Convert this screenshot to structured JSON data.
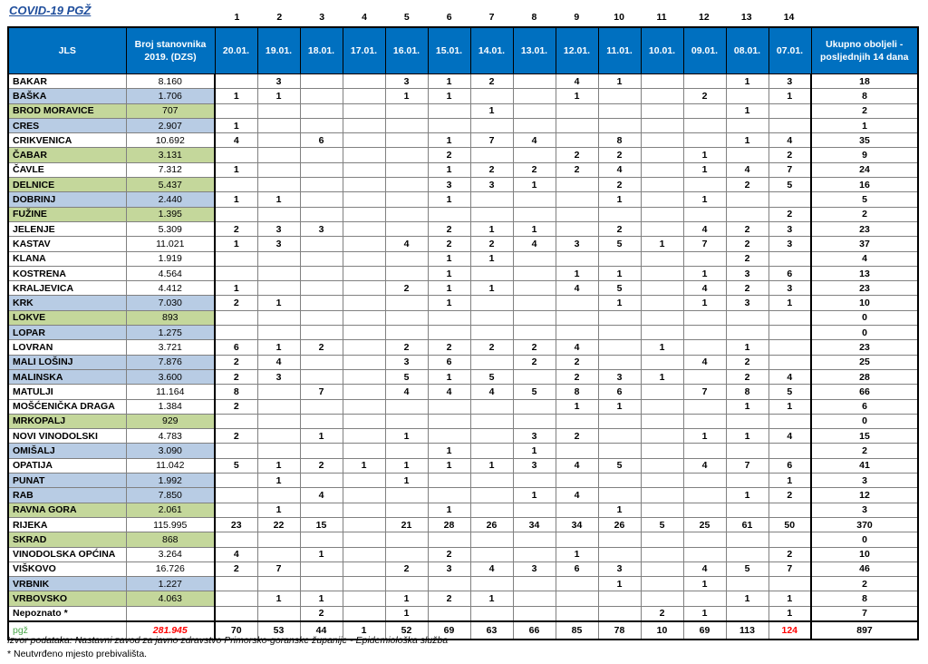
{
  "title": "COVID-19  PGŽ",
  "column_numbers": [
    "1",
    "2",
    "3",
    "4",
    "5",
    "6",
    "7",
    "8",
    "9",
    "10",
    "11",
    "12",
    "13",
    "14"
  ],
  "headers": {
    "jls": "JLS",
    "population": "Broj stanovnika 2019. (DZS)",
    "dates": [
      "20.01.",
      "19.01.",
      "18.01.",
      "17.01.",
      "16.01.",
      "15.01.",
      "14.01.",
      "13.01.",
      "12.01.",
      "11.01.",
      "10.01.",
      "09.01.",
      "08.01.",
      "07.01."
    ],
    "total": "Ukupno oboljeli - posljednjih 14 dana"
  },
  "rows": [
    {
      "name": "BAKAR",
      "pop": "8.160",
      "style": "white",
      "days": [
        "",
        "3",
        "",
        "",
        "3",
        "1",
        "2",
        "",
        "4",
        "1",
        "",
        "",
        "1",
        "3"
      ],
      "total": "18"
    },
    {
      "name": "BAŠKA",
      "pop": "1.706",
      "style": "blue",
      "days": [
        "1",
        "1",
        "",
        "",
        "1",
        "1",
        "",
        "",
        "1",
        "",
        "",
        "2",
        "",
        "1"
      ],
      "total": "8"
    },
    {
      "name": "BROD MORAVICE",
      "pop": "707",
      "style": "green",
      "days": [
        "",
        "",
        "",
        "",
        "",
        "",
        "1",
        "",
        "",
        "",
        "",
        "",
        "1",
        ""
      ],
      "total": "2"
    },
    {
      "name": "CRES",
      "pop": "2.907",
      "style": "blue",
      "days": [
        "1",
        "",
        "",
        "",
        "",
        "",
        "",
        "",
        "",
        "",
        "",
        "",
        "",
        ""
      ],
      "total": "1"
    },
    {
      "name": "CRIKVENICA",
      "pop": "10.692",
      "style": "white",
      "days": [
        "4",
        "",
        "6",
        "",
        "",
        "1",
        "7",
        "4",
        "",
        "8",
        "",
        "",
        "1",
        "4"
      ],
      "total": "35"
    },
    {
      "name": "ČABAR",
      "pop": "3.131",
      "style": "green",
      "days": [
        "",
        "",
        "",
        "",
        "",
        "2",
        "",
        "",
        "2",
        "2",
        "",
        "1",
        "",
        "2"
      ],
      "total": "9"
    },
    {
      "name": "ČAVLE",
      "pop": "7.312",
      "style": "white",
      "days": [
        "1",
        "",
        "",
        "",
        "",
        "1",
        "2",
        "2",
        "2",
        "4",
        "",
        "1",
        "4",
        "7"
      ],
      "total": "24"
    },
    {
      "name": "DELNICE",
      "pop": "5.437",
      "style": "green",
      "days": [
        "",
        "",
        "",
        "",
        "",
        "3",
        "3",
        "1",
        "",
        "2",
        "",
        "",
        "2",
        "5"
      ],
      "total": "16"
    },
    {
      "name": "DOBRINJ",
      "pop": "2.440",
      "style": "blue",
      "days": [
        "1",
        "1",
        "",
        "",
        "",
        "1",
        "",
        "",
        "",
        "1",
        "",
        "1",
        "",
        ""
      ],
      "total": "5"
    },
    {
      "name": "FUŽINE",
      "pop": "1.395",
      "style": "green",
      "days": [
        "",
        "",
        "",
        "",
        "",
        "",
        "",
        "",
        "",
        "",
        "",
        "",
        "",
        "2"
      ],
      "total": "2"
    },
    {
      "name": "JELENJE",
      "pop": "5.309",
      "style": "white",
      "days": [
        "2",
        "3",
        "3",
        "",
        "",
        "2",
        "1",
        "1",
        "",
        "2",
        "",
        "4",
        "2",
        "3"
      ],
      "total": "23"
    },
    {
      "name": "KASTAV",
      "pop": "11.021",
      "style": "white",
      "days": [
        "1",
        "3",
        "",
        "",
        "4",
        "2",
        "2",
        "4",
        "3",
        "5",
        "1",
        "7",
        "2",
        "3"
      ],
      "total": "37"
    },
    {
      "name": "KLANA",
      "pop": "1.919",
      "style": "white",
      "days": [
        "",
        "",
        "",
        "",
        "",
        "1",
        "1",
        "",
        "",
        "",
        "",
        "",
        "2",
        ""
      ],
      "total": "4"
    },
    {
      "name": "KOSTRENA",
      "pop": "4.564",
      "style": "white",
      "days": [
        "",
        "",
        "",
        "",
        "",
        "1",
        "",
        "",
        "1",
        "1",
        "",
        "1",
        "3",
        "6"
      ],
      "total": "13"
    },
    {
      "name": "KRALJEVICA",
      "pop": "4.412",
      "style": "white",
      "days": [
        "1",
        "",
        "",
        "",
        "2",
        "1",
        "1",
        "",
        "4",
        "5",
        "",
        "4",
        "2",
        "3"
      ],
      "total": "23"
    },
    {
      "name": "KRK",
      "pop": "7.030",
      "style": "blue",
      "days": [
        "2",
        "1",
        "",
        "",
        "",
        "1",
        "",
        "",
        "",
        "1",
        "",
        "1",
        "3",
        "1"
      ],
      "total": "10"
    },
    {
      "name": "LOKVE",
      "pop": "893",
      "style": "green",
      "days": [
        "",
        "",
        "",
        "",
        "",
        "",
        "",
        "",
        "",
        "",
        "",
        "",
        "",
        ""
      ],
      "total": "0"
    },
    {
      "name": "LOPAR",
      "pop": "1.275",
      "style": "blue",
      "days": [
        "",
        "",
        "",
        "",
        "",
        "",
        "",
        "",
        "",
        "",
        "",
        "",
        "",
        ""
      ],
      "total": "0"
    },
    {
      "name": "LOVRAN",
      "pop": "3.721",
      "style": "white",
      "days": [
        "6",
        "1",
        "2",
        "",
        "2",
        "2",
        "2",
        "2",
        "4",
        "",
        "1",
        "",
        "1",
        ""
      ],
      "total": "23"
    },
    {
      "name": "MALI LOŠINJ",
      "pop": "7.876",
      "style": "blue",
      "days": [
        "2",
        "4",
        "",
        "",
        "3",
        "6",
        "",
        "2",
        "2",
        "",
        "",
        "4",
        "2",
        ""
      ],
      "total": "25"
    },
    {
      "name": "MALINSKA",
      "pop": "3.600",
      "style": "blue",
      "days": [
        "2",
        "3",
        "",
        "",
        "5",
        "1",
        "5",
        "",
        "2",
        "3",
        "1",
        "",
        "2",
        "4"
      ],
      "total": "28"
    },
    {
      "name": "MATULJI",
      "pop": "11.164",
      "style": "white",
      "days": [
        "8",
        "",
        "7",
        "",
        "4",
        "4",
        "4",
        "5",
        "8",
        "6",
        "",
        "7",
        "8",
        "5"
      ],
      "total": "66"
    },
    {
      "name": "MOŠĆENIČKA DRAGA",
      "pop": "1.384",
      "style": "white",
      "days": [
        "2",
        "",
        "",
        "",
        "",
        "",
        "",
        "",
        "1",
        "1",
        "",
        "",
        "1",
        "1"
      ],
      "total": "6"
    },
    {
      "name": "MRKOPALJ",
      "pop": "929",
      "style": "green",
      "days": [
        "",
        "",
        "",
        "",
        "",
        "",
        "",
        "",
        "",
        "",
        "",
        "",
        "",
        ""
      ],
      "total": "0"
    },
    {
      "name": "NOVI VINODOLSKI",
      "pop": "4.783",
      "style": "white",
      "days": [
        "2",
        "",
        "1",
        "",
        "1",
        "",
        "",
        "3",
        "2",
        "",
        "",
        "1",
        "1",
        "4"
      ],
      "total": "15"
    },
    {
      "name": "OMIŠALJ",
      "pop": "3.090",
      "style": "blue",
      "days": [
        "",
        "",
        "",
        "",
        "",
        "1",
        "",
        "1",
        "",
        "",
        "",
        "",
        "",
        ""
      ],
      "total": "2"
    },
    {
      "name": "OPATIJA",
      "pop": "11.042",
      "style": "white",
      "days": [
        "5",
        "1",
        "2",
        "1",
        "1",
        "1",
        "1",
        "3",
        "4",
        "5",
        "",
        "4",
        "7",
        "6"
      ],
      "total": "41"
    },
    {
      "name": "PUNAT",
      "pop": "1.992",
      "style": "blue",
      "days": [
        "",
        "1",
        "",
        "",
        "1",
        "",
        "",
        "",
        "",
        "",
        "",
        "",
        "",
        "1"
      ],
      "total": "3"
    },
    {
      "name": "RAB",
      "pop": "7.850",
      "style": "blue",
      "days": [
        "",
        "",
        "4",
        "",
        "",
        "",
        "",
        "1",
        "4",
        "",
        "",
        "",
        "1",
        "2"
      ],
      "total": "12"
    },
    {
      "name": "RAVNA GORA",
      "pop": "2.061",
      "style": "green",
      "days": [
        "",
        "1",
        "",
        "",
        "",
        "1",
        "",
        "",
        "",
        "1",
        "",
        "",
        "",
        ""
      ],
      "total": "3"
    },
    {
      "name": "RIJEKA",
      "pop": "115.995",
      "style": "white",
      "days": [
        "23",
        "22",
        "15",
        "",
        "21",
        "28",
        "26",
        "34",
        "34",
        "26",
        "5",
        "25",
        "61",
        "50"
      ],
      "total": "370"
    },
    {
      "name": "SKRAD",
      "pop": "868",
      "style": "green",
      "days": [
        "",
        "",
        "",
        "",
        "",
        "",
        "",
        "",
        "",
        "",
        "",
        "",
        "",
        ""
      ],
      "total": "0"
    },
    {
      "name": "VINODOLSKA OPĆINA",
      "pop": "3.264",
      "style": "white",
      "days": [
        "4",
        "",
        "1",
        "",
        "",
        "2",
        "",
        "",
        "1",
        "",
        "",
        "",
        "",
        "2"
      ],
      "total": "10"
    },
    {
      "name": "VIŠKOVO",
      "pop": "16.726",
      "style": "white",
      "days": [
        "2",
        "7",
        "",
        "",
        "2",
        "3",
        "4",
        "3",
        "6",
        "3",
        "",
        "4",
        "5",
        "7"
      ],
      "total": "46"
    },
    {
      "name": "VRBNIK",
      "pop": "1.227",
      "style": "blue",
      "days": [
        "",
        "",
        "",
        "",
        "",
        "",
        "",
        "",
        "",
        "1",
        "",
        "1",
        "",
        ""
      ],
      "total": "2"
    },
    {
      "name": "VRBOVSKO",
      "pop": "4.063",
      "style": "green",
      "days": [
        "",
        "1",
        "1",
        "",
        "1",
        "2",
        "1",
        "",
        "",
        "",
        "",
        "",
        "1",
        "1"
      ],
      "total": "8"
    },
    {
      "name": "Nepoznato *",
      "pop": "",
      "style": "white",
      "days": [
        "",
        "",
        "2",
        "",
        "1",
        "",
        "",
        "",
        "",
        "",
        "2",
        "1",
        "",
        "1"
      ],
      "total": "7"
    }
  ],
  "summary": {
    "name": "pgž",
    "pop": "281.945",
    "days": [
      "70",
      "53",
      "44",
      "1",
      "52",
      "69",
      "63",
      "66",
      "85",
      "78",
      "10",
      "69",
      "113",
      "124"
    ],
    "total": "897"
  },
  "source": "Izvor podataka: Nastavni zavod za javno zdravstvo Primorsko-goranske županije  - Epidemiološka služba",
  "note": "* Neutvrđeno mjesto prebivališta."
}
